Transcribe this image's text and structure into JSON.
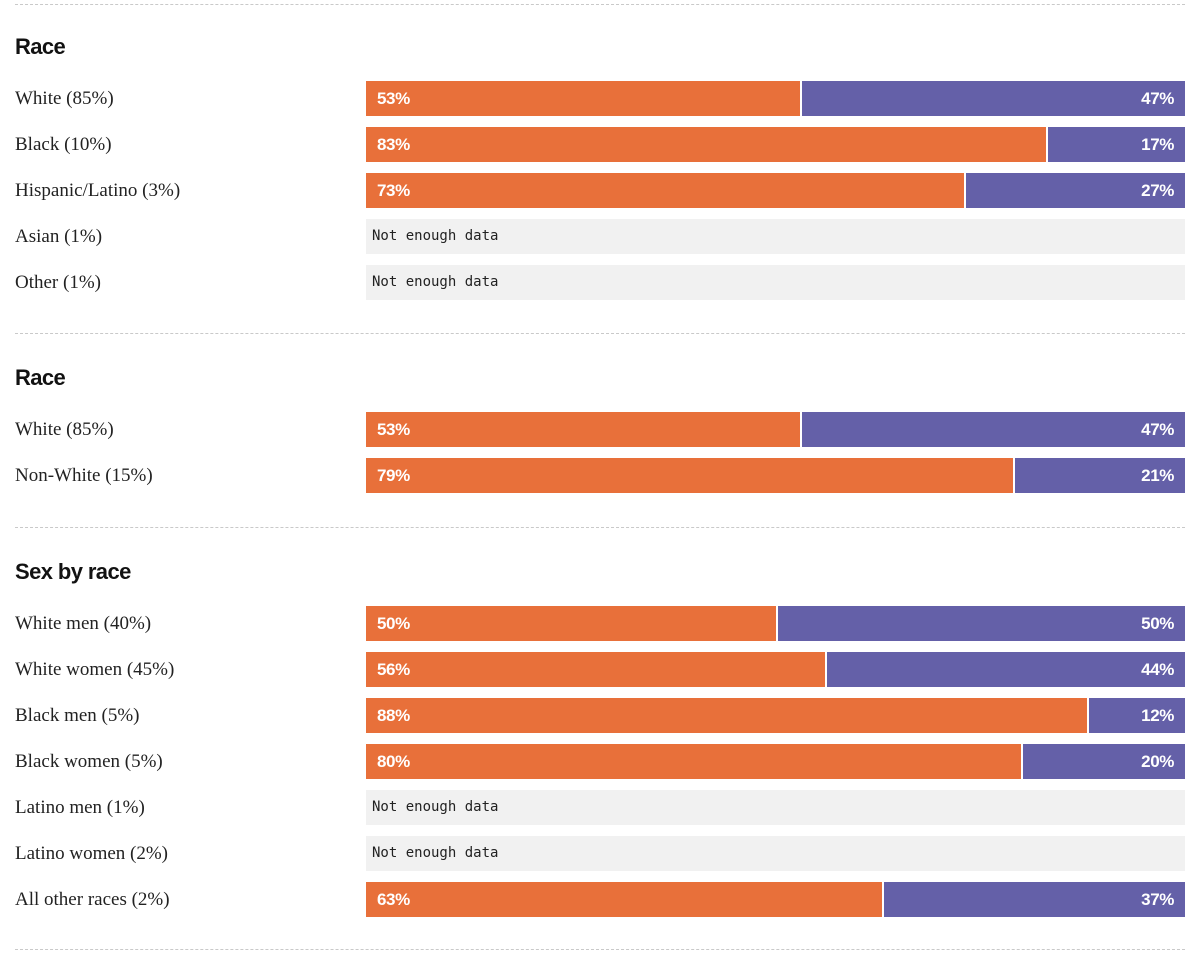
{
  "colors": {
    "dem": "#e8703a",
    "rep": "#6460a8",
    "no_data_bg": "#f1f1f1"
  },
  "no_data_text": "Not enough data",
  "chart_data": [
    {
      "type": "bar",
      "orientation": "horizontal-stacked",
      "title": "Race",
      "categories": [
        "White (85%)",
        "Black (10%)",
        "Hispanic/Latino (3%)",
        "Asian (1%)",
        "Other (1%)"
      ],
      "series": [
        {
          "values": [
            53,
            83,
            73,
            null,
            null
          ],
          "labels": [
            "53%",
            "83%",
            "73%",
            null,
            null
          ],
          "color": "#e8703a"
        },
        {
          "values": [
            47,
            17,
            27,
            null,
            null
          ],
          "labels": [
            "47%",
            "17%",
            "27%",
            null,
            null
          ],
          "color": "#6460a8"
        }
      ],
      "xlim": [
        0,
        100
      ]
    },
    {
      "type": "bar",
      "orientation": "horizontal-stacked",
      "title": "Race",
      "categories": [
        "White (85%)",
        "Non-White (15%)"
      ],
      "series": [
        {
          "values": [
            53,
            79
          ],
          "labels": [
            "53%",
            "79%"
          ],
          "color": "#e8703a"
        },
        {
          "values": [
            47,
            21
          ],
          "labels": [
            "47%",
            "21%"
          ],
          "color": "#6460a8"
        }
      ],
      "xlim": [
        0,
        100
      ]
    },
    {
      "type": "bar",
      "orientation": "horizontal-stacked",
      "title": "Sex by race",
      "categories": [
        "White men (40%)",
        "White women (45%)",
        "Black men (5%)",
        "Black women (5%)",
        "Latino men (1%)",
        "Latino women (2%)",
        "All other races (2%)"
      ],
      "series": [
        {
          "values": [
            50,
            56,
            88,
            80,
            null,
            null,
            63
          ],
          "labels": [
            "50%",
            "56%",
            "88%",
            "80%",
            null,
            null,
            "63%"
          ],
          "color": "#e8703a"
        },
        {
          "values": [
            50,
            44,
            12,
            20,
            null,
            null,
            37
          ],
          "labels": [
            "50%",
            "44%",
            "12%",
            "20%",
            null,
            null,
            "37%"
          ],
          "color": "#6460a8"
        }
      ],
      "xlim": [
        0,
        100
      ]
    }
  ]
}
